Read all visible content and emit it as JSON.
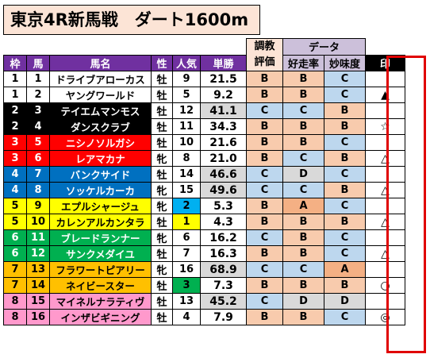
{
  "title": "東京4R新馬戦　ダート1600m",
  "header": {
    "group_training": [
      "調教",
      "評価"
    ],
    "group_data": "データ",
    "waku": "枠",
    "uma": "馬",
    "bamei": "馬名",
    "sei": "性",
    "ninki": "人気",
    "tansho": "単勝",
    "kosoritsu": "好走率",
    "mimido": "妙味度",
    "shirushi": "印"
  },
  "colors": {
    "waku": {
      "1": "#ffffff",
      "2": "#000000",
      "3": "#ff0000",
      "4": "#0070c0",
      "5": "#ffff00",
      "6": "#00b050",
      "7": "#ffc000",
      "8": "#ff99cc"
    },
    "waku_text": {
      "1": "#000000",
      "2": "#ffffff",
      "3": "#ffffff",
      "4": "#ffffff",
      "5": "#000000",
      "6": "#ffffff",
      "7": "#000000",
      "8": "#000000"
    },
    "grade": {
      "A": "#f4b084",
      "B": "#f8cbad",
      "C": "#bdd7ee",
      "D": "#d9d9d9"
    },
    "popular_highlight": {
      "1": "#ffff00",
      "2": "#00b0f0",
      "3": "#00b050"
    },
    "odds_top": "#d9d9d9"
  },
  "rows": [
    {
      "waku": "1",
      "uma": "1",
      "name": "ドライブアローカス",
      "sex": "牡",
      "pop": "9",
      "odds": "21.5",
      "train": "B",
      "kos": "B",
      "mimi": "C",
      "mark": ""
    },
    {
      "waku": "1",
      "uma": "2",
      "name": "ヤングワールド",
      "sex": "牡",
      "pop": "5",
      "odds": "9.2",
      "train": "B",
      "kos": "B",
      "mimi": "C",
      "mark": "▲"
    },
    {
      "waku": "2",
      "uma": "3",
      "name": "テイエムマンモス",
      "sex": "牡",
      "pop": "12",
      "odds": "41.1",
      "train": "C",
      "kos": "C",
      "mimi": "B",
      "mark": ""
    },
    {
      "waku": "2",
      "uma": "4",
      "name": "ダンスクラブ",
      "sex": "牡",
      "pop": "11",
      "odds": "34.3",
      "train": "B",
      "kos": "B",
      "mimi": "B",
      "mark": "☆"
    },
    {
      "waku": "3",
      "uma": "5",
      "name": "ニシノソルガシ",
      "sex": "牡",
      "pop": "10",
      "odds": "21.6",
      "train": "B",
      "kos": "B",
      "mimi": "C",
      "mark": ""
    },
    {
      "waku": "3",
      "uma": "6",
      "name": "レアマカナ",
      "sex": "牝",
      "pop": "8",
      "odds": "21.0",
      "train": "B",
      "kos": "C",
      "mimi": "B",
      "mark": "△"
    },
    {
      "waku": "4",
      "uma": "7",
      "name": "バンクサイド",
      "sex": "牡",
      "pop": "14",
      "odds": "46.6",
      "train": "C",
      "kos": "D",
      "mimi": "C",
      "mark": ""
    },
    {
      "waku": "4",
      "uma": "8",
      "name": "ソッケルカーカ",
      "sex": "牝",
      "pop": "15",
      "odds": "49.6",
      "train": "C",
      "kos": "C",
      "mimi": "B",
      "mark": "△"
    },
    {
      "waku": "5",
      "uma": "9",
      "name": "エプルシャージュ",
      "sex": "牝",
      "pop": "2",
      "odds": "5.3",
      "train": "B",
      "kos": "A",
      "mimi": "C",
      "mark": ""
    },
    {
      "waku": "5",
      "uma": "10",
      "name": "カレンアルカンタラ",
      "sex": "牡",
      "pop": "1",
      "odds": "4.3",
      "train": "B",
      "kos": "B",
      "mimi": "B",
      "mark": "△"
    },
    {
      "waku": "6",
      "uma": "11",
      "name": "ブレードランナー",
      "sex": "牝",
      "pop": "6",
      "odds": "16.2",
      "train": "C",
      "kos": "B",
      "mimi": "C",
      "mark": ""
    },
    {
      "waku": "6",
      "uma": "12",
      "name": "サンクメダイユ",
      "sex": "牡",
      "pop": "7",
      "odds": "16.3",
      "train": "B",
      "kos": "B",
      "mimi": "C",
      "mark": "△"
    },
    {
      "waku": "7",
      "uma": "13",
      "name": "フラワートピアリー",
      "sex": "牝",
      "pop": "16",
      "odds": "68.9",
      "train": "C",
      "kos": "C",
      "mimi": "A",
      "mark": ""
    },
    {
      "waku": "7",
      "uma": "14",
      "name": "ネイビースター",
      "sex": "牡",
      "pop": "3",
      "odds": "7.3",
      "train": "B",
      "kos": "B",
      "mimi": "B",
      "mark": "○"
    },
    {
      "waku": "8",
      "uma": "15",
      "name": "マイネルナラティヴ",
      "sex": "牡",
      "pop": "13",
      "odds": "45.2",
      "train": "C",
      "kos": "D",
      "mimi": "D",
      "mark": ""
    },
    {
      "waku": "8",
      "uma": "16",
      "name": "インザビギニング",
      "sex": "牡",
      "pop": "4",
      "odds": "7.9",
      "train": "B",
      "kos": "B",
      "mimi": "C",
      "mark": "◎"
    }
  ]
}
